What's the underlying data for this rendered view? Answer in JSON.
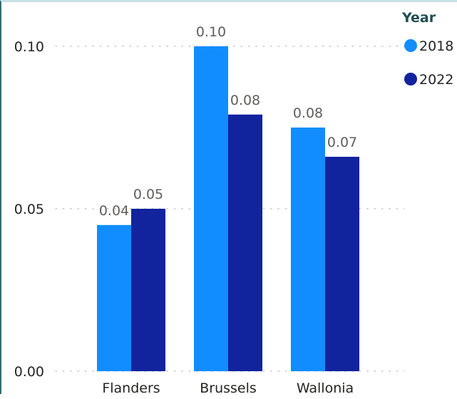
{
  "chart_data": {
    "type": "bar",
    "categories": [
      "Flanders",
      "Brussels",
      "Wallonia"
    ],
    "series": [
      {
        "name": "2018",
        "values": [
          0.045,
          0.1,
          0.075
        ],
        "labels": [
          "0.04",
          "0.10",
          "0.08"
        ],
        "color": "#118dff"
      },
      {
        "name": "2022",
        "values": [
          0.05,
          0.079,
          0.066
        ],
        "labels": [
          "0.05",
          "0.08",
          "0.07"
        ],
        "color": "#12239e"
      }
    ],
    "legend_title": "Year",
    "legend_position": "top-right",
    "ylim": [
      0,
      0.1
    ],
    "yticks": [
      0.0,
      0.05,
      0.1
    ],
    "ytick_labels": [
      "0.00",
      "0.05",
      "0.10"
    ],
    "grid": true,
    "colors": {
      "axis_text": "#252423",
      "label_text": "#605e5c",
      "grid": "#c8c6c4",
      "legend_title": "#1f4e54"
    }
  }
}
